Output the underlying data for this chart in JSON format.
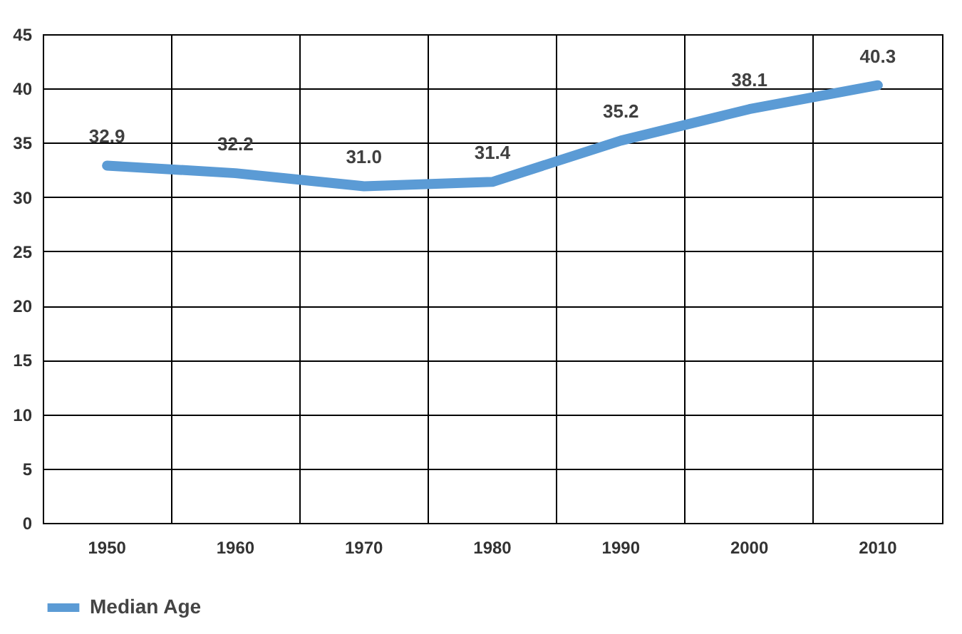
{
  "chart_data": {
    "type": "line",
    "categories": [
      "1950",
      "1960",
      "1970",
      "1980",
      "1990",
      "2000",
      "2010"
    ],
    "series": [
      {
        "name": "Median Age",
        "color": "#5b9bd5",
        "values": [
          32.9,
          32.2,
          31.0,
          31.4,
          35.2,
          38.1,
          40.3
        ],
        "value_labels": [
          "32.9",
          "32.2",
          "31.0",
          "31.4",
          "35.2",
          "38.1",
          "40.3"
        ]
      }
    ],
    "ylim": [
      0,
      45
    ],
    "yticks": [
      0,
      5,
      10,
      15,
      20,
      25,
      30,
      35,
      40,
      45
    ],
    "grid": true,
    "legend": "bottom",
    "marker": "none",
    "line_style": "solid"
  }
}
